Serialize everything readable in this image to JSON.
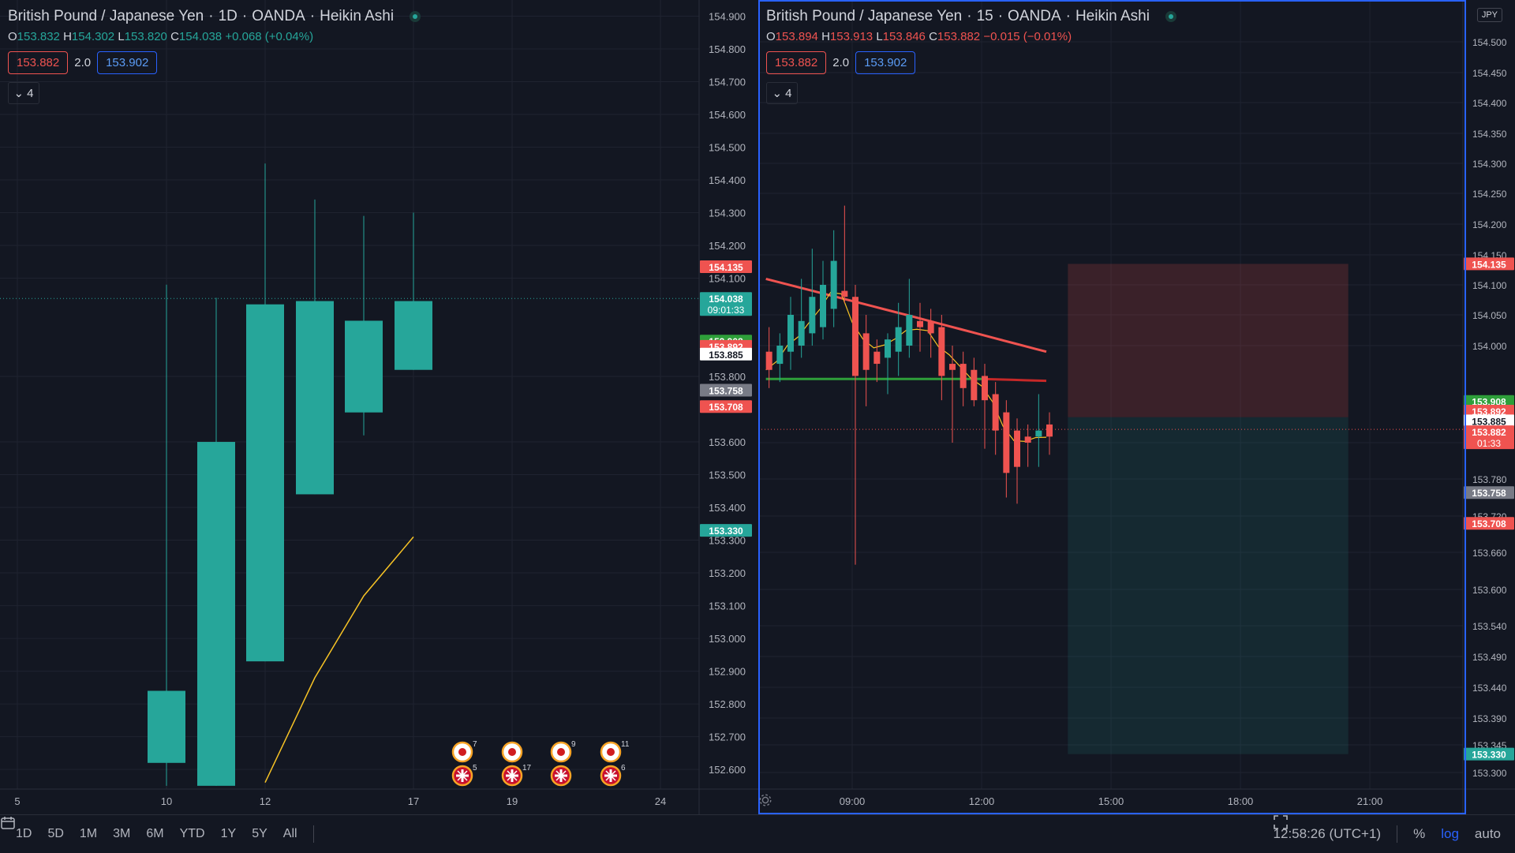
{
  "colors": {
    "bg": "#131722",
    "grid": "#1f2330",
    "up": "#26a69a",
    "down": "#ef5350",
    "axis_text": "#b2b5be",
    "border_active": "#2962ff",
    "ema_yellow": "#f7c325",
    "ma_red": "#ef5350",
    "ma_green": "#2e9f3a"
  },
  "left": {
    "title": {
      "symbol": "British Pound / Japanese Yen",
      "interval": "1D",
      "broker": "OANDA",
      "style": "Heikin Ashi"
    },
    "ohlc": {
      "o_label": "O",
      "o": "153.832",
      "h_label": "H",
      "h": "154.302",
      "l_label": "L",
      "l": "153.820",
      "c_label": "C",
      "c": "154.038",
      "change": "+0.068 (+0.04%)"
    },
    "spread": {
      "sell": "153.882",
      "value": "2.0",
      "buy": "153.902"
    },
    "collapse": "4"
  },
  "right": {
    "title": {
      "symbol": "British Pound / Japanese Yen",
      "interval": "15",
      "broker": "OANDA",
      "style": "Heikin Ashi"
    },
    "ohlc": {
      "o_label": "O",
      "o": "153.894",
      "h_label": "H",
      "h": "153.913",
      "l_label": "L",
      "l": "153.846",
      "c_label": "C",
      "c": "153.882",
      "change": "−0.015 (−0.01%)"
    },
    "spread": {
      "sell": "153.882",
      "value": "2.0",
      "buy": "153.902"
    },
    "collapse": "4",
    "currency": "JPY"
  },
  "chart_data": [
    {
      "type": "candlestick",
      "style": "Heikin Ashi",
      "interval": "1D",
      "x_ticks": [
        "5",
        "10",
        "12",
        "17",
        "19",
        "24"
      ],
      "y_ticks": [
        "154.900",
        "154.800",
        "154.700",
        "154.600",
        "154.500",
        "154.400",
        "154.300",
        "154.200",
        "154.100",
        "153.800",
        "153.600",
        "153.500",
        "153.400",
        "153.300",
        "153.200",
        "153.100",
        "153.000",
        "152.900",
        "152.800",
        "152.700",
        "152.600"
      ],
      "ylim": [
        152.54,
        154.93
      ],
      "candles": [
        {
          "x": "10",
          "o": 152.62,
          "h": 154.08,
          "l": 152.55,
          "c": 152.84
        },
        {
          "x": "11",
          "o": 152.55,
          "h": 154.04,
          "l": 152.55,
          "c": 153.6
        },
        {
          "x": "12",
          "o": 152.93,
          "h": 154.45,
          "l": 152.93,
          "c": 154.02
        },
        {
          "x": "13",
          "o": 153.44,
          "h": 154.34,
          "l": 153.44,
          "c": 154.03
        },
        {
          "x": "16",
          "o": 153.69,
          "h": 154.29,
          "l": 153.62,
          "c": 153.97
        },
        {
          "x": "17",
          "o": 153.82,
          "h": 154.3,
          "l": 153.82,
          "c": 154.03
        }
      ],
      "yellow_line": [
        {
          "x": "12",
          "y": 152.56
        },
        {
          "x": "13",
          "y": 152.88
        },
        {
          "x": "16",
          "y": 153.13
        },
        {
          "x": "17",
          "y": 153.31
        }
      ],
      "price_labels": [
        {
          "text": "154.135",
          "y": 154.135,
          "color": "#ef5350"
        },
        {
          "text": "154.038",
          "y": 154.038,
          "color": "#26a69a",
          "sub": "09:01:33"
        },
        {
          "text": "153.908",
          "y": 153.908,
          "color": "#2e9f3a"
        },
        {
          "text": "153.892",
          "y": 153.892,
          "color": "#ef5350"
        },
        {
          "text": "153.885",
          "y": 153.868,
          "color": "#ffffff"
        },
        {
          "text": "153.758",
          "y": 153.758,
          "color": "#787b86"
        },
        {
          "text": "153.708",
          "y": 153.708,
          "color": "#ef5350"
        },
        {
          "text": "153.330",
          "y": 153.33,
          "color": "#26a69a"
        }
      ],
      "events": [
        {
          "x": "18",
          "jp": "7",
          "uk": "5"
        },
        {
          "x": "19",
          "jp": "",
          "uk": "17"
        },
        {
          "x": "20",
          "jp": "9",
          "uk": ""
        },
        {
          "x": "21",
          "jp": "11",
          "uk": "6"
        }
      ]
    },
    {
      "type": "candlestick",
      "style": "Heikin Ashi",
      "interval": "15",
      "x_ticks": [
        "09:00",
        "12:00",
        "15:00",
        "18:00",
        "21:00"
      ],
      "y_ticks": [
        "154.500",
        "154.450",
        "154.400",
        "154.350",
        "154.300",
        "154.250",
        "154.200",
        "154.150",
        "154.100",
        "154.050",
        "154.000",
        "153.840",
        "153.780",
        "153.720",
        "153.660",
        "153.600",
        "153.540",
        "153.490",
        "153.440",
        "153.390",
        "153.345",
        "153.300"
      ],
      "candles": [
        {
          "t": "07:00",
          "o": 153.99,
          "h": 154.03,
          "l": 153.93,
          "c": 153.96
        },
        {
          "t": "07:15",
          "o": 153.97,
          "h": 154.02,
          "l": 153.94,
          "c": 154.0
        },
        {
          "t": "07:30",
          "o": 153.99,
          "h": 154.08,
          "l": 153.96,
          "c": 154.05
        },
        {
          "t": "07:45",
          "o": 154.0,
          "h": 154.11,
          "l": 153.98,
          "c": 154.04
        },
        {
          "t": "08:00",
          "o": 154.02,
          "h": 154.16,
          "l": 154.0,
          "c": 154.08
        },
        {
          "t": "08:15",
          "o": 154.03,
          "h": 154.14,
          "l": 154.01,
          "c": 154.1
        },
        {
          "t": "08:30",
          "o": 154.06,
          "h": 154.19,
          "l": 154.03,
          "c": 154.14
        },
        {
          "t": "08:45",
          "o": 154.09,
          "h": 154.23,
          "l": 154.07,
          "c": 154.08
        },
        {
          "t": "09:00",
          "o": 154.08,
          "h": 154.1,
          "l": 153.64,
          "c": 153.95
        },
        {
          "t": "09:15",
          "o": 154.02,
          "h": 154.05,
          "l": 153.9,
          "c": 153.96
        },
        {
          "t": "09:30",
          "o": 153.99,
          "h": 154.01,
          "l": 153.94,
          "c": 153.97
        },
        {
          "t": "09:45",
          "o": 153.98,
          "h": 154.02,
          "l": 153.92,
          "c": 154.01
        },
        {
          "t": "10:00",
          "o": 153.99,
          "h": 154.07,
          "l": 153.95,
          "c": 154.03
        },
        {
          "t": "10:15",
          "o": 154.0,
          "h": 154.11,
          "l": 153.98,
          "c": 154.05
        },
        {
          "t": "10:30",
          "o": 154.04,
          "h": 154.07,
          "l": 153.99,
          "c": 154.03
        },
        {
          "t": "10:45",
          "o": 154.04,
          "h": 154.06,
          "l": 153.98,
          "c": 154.02
        },
        {
          "t": "11:00",
          "o": 154.03,
          "h": 154.05,
          "l": 153.91,
          "c": 153.95
        },
        {
          "t": "11:15",
          "o": 153.97,
          "h": 154.0,
          "l": 153.84,
          "c": 153.96
        },
        {
          "t": "11:30",
          "o": 153.97,
          "h": 153.99,
          "l": 153.9,
          "c": 153.93
        },
        {
          "t": "11:45",
          "o": 153.96,
          "h": 153.98,
          "l": 153.9,
          "c": 153.91
        },
        {
          "t": "12:00",
          "o": 153.95,
          "h": 153.97,
          "l": 153.83,
          "c": 153.91
        },
        {
          "t": "12:15",
          "o": 153.92,
          "h": 153.94,
          "l": 153.82,
          "c": 153.86
        },
        {
          "t": "12:30",
          "o": 153.89,
          "h": 153.91,
          "l": 153.75,
          "c": 153.79
        },
        {
          "t": "12:45",
          "o": 153.86,
          "h": 153.88,
          "l": 153.74,
          "c": 153.8
        },
        {
          "t": "13:00",
          "o": 153.85,
          "h": 153.87,
          "l": 153.8,
          "c": 153.84
        },
        {
          "t": "13:15",
          "o": 153.85,
          "h": 153.92,
          "l": 153.8,
          "c": 153.86
        },
        {
          "t": "13:30",
          "o": 153.87,
          "h": 153.89,
          "l": 153.82,
          "c": 153.85
        }
      ],
      "price_labels": [
        {
          "text": "154.135",
          "y": 154.135,
          "color": "#ef5350"
        },
        {
          "text": "153.908",
          "y": 153.908,
          "color": "#2e9f3a"
        },
        {
          "text": "153.892",
          "y": 153.892,
          "color": "#ef5350"
        },
        {
          "text": "153.885",
          "y": 153.876,
          "color": "#ffffff"
        },
        {
          "text": "153.882",
          "y": 153.858,
          "color": "#ef5350",
          "sub": "01:33"
        },
        {
          "text": "153.758",
          "y": 153.758,
          "color": "#787b86"
        },
        {
          "text": "153.708",
          "y": 153.708,
          "color": "#ef5350"
        },
        {
          "text": "153.330",
          "y": 153.33,
          "color": "#26a69a"
        }
      ],
      "position": {
        "entry": 153.882,
        "stop": 154.135,
        "target": 153.33,
        "start": "14:00",
        "end": "20:30"
      }
    }
  ],
  "bottom": {
    "ranges": [
      "1D",
      "5D",
      "1M",
      "3M",
      "6M",
      "YTD",
      "1Y",
      "5Y",
      "All"
    ],
    "time": "12:58:26 (UTC+1)",
    "percent": "%",
    "log": "log",
    "auto": "auto"
  }
}
